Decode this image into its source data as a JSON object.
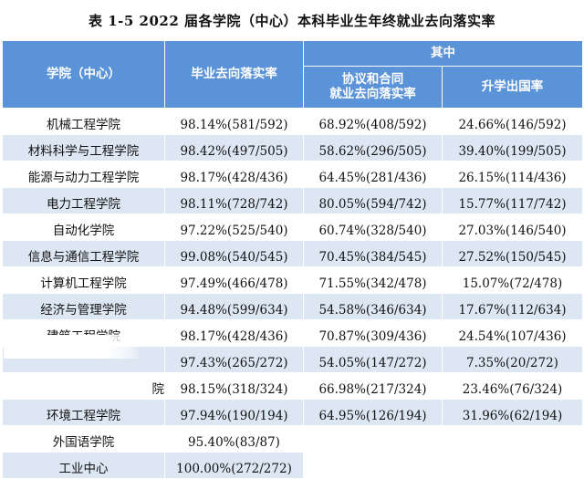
{
  "title": "表 1-5   2022 届各学院（中心）本科毕业生年终就业去向落实率",
  "headers": {
    "college": "学院（中心）",
    "rate": "毕业去向落实率",
    "group": "其中",
    "agreement_line1": "协议和合同",
    "agreement_line2": "就业去向落实率",
    "abroad": "升学出国率"
  },
  "rows": [
    {
      "college": "机械工程学院",
      "rate": "98.14%(581/592)",
      "agreement": "68.92%(408/592)",
      "abroad": "24.66%(146/592)"
    },
    {
      "college": "材料科学与工程学院",
      "rate": "98.42%(497/505)",
      "agreement": "58.62%(296/505)",
      "abroad": "39.40%(199/505)"
    },
    {
      "college": "能源与动力工程学院",
      "rate": "98.17%(428/436)",
      "agreement": "64.45%(281/436)",
      "abroad": "26.15%(114/436)"
    },
    {
      "college": "电力工程学院",
      "rate": "98.11%(728/742)",
      "agreement": "80.05%(594/742)",
      "abroad": "15.77%(117/742)"
    },
    {
      "college": "自动化学院",
      "rate": "97.22%(525/540)",
      "agreement": "60.74%(328/540)",
      "abroad": "27.03%(146/540)"
    },
    {
      "college": "信息与通信工程学院",
      "rate": "99.08%(540/545)",
      "agreement": "70.45%(384/545)",
      "abroad": "27.52%(150/545)"
    },
    {
      "college": "计算机工程学院",
      "rate": "97.49%(466/478)",
      "agreement": "71.55%(342/478)",
      "abroad": "15.07%(72/478)"
    },
    {
      "college": "经济与管理学院",
      "rate": "94.48%(599/634)",
      "agreement": "54.58%(346/634)",
      "abroad": "17.67%(112/634)"
    },
    {
      "college": "建筑工程学院",
      "rate": "98.17%(428/436)",
      "agreement": "70.87%(309/436)",
      "abroad": "24.54%(107/436)"
    },
    {
      "college": "",
      "rate": "97.43%(265/272)",
      "agreement": "54.05%(147/272)",
      "abroad": "7.35%(20/272)"
    },
    {
      "college": "院",
      "rate": "98.15%(318/324)",
      "agreement": "66.98%(217/324)",
      "abroad": "23.46%(76/324)"
    },
    {
      "college": "环境工程学院",
      "rate": "97.94%(190/194)",
      "agreement": "64.95%(126/194)",
      "abroad": "31.96%(62/194)"
    },
    {
      "college": "外国语学院",
      "rate": "95.40%(83/87)",
      "agreement": "",
      "abroad": ""
    },
    {
      "college": "工业中心",
      "rate": "100.00%(272/272)",
      "agreement": "",
      "abroad": ""
    }
  ]
}
